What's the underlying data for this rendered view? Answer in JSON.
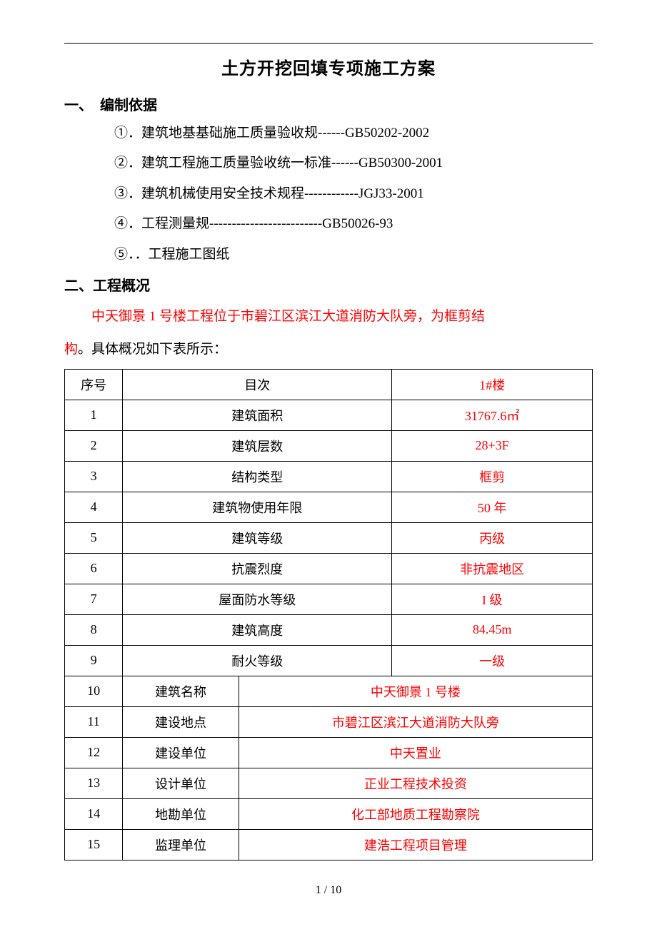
{
  "title": "土方开挖回填专项施工方案",
  "section1": {
    "heading": "一、　编制依据",
    "items": [
      "①．建筑地基基础施工质量验收规------GB50202-2002",
      "②．建筑工程施工质量验收统一标准------GB50300-2001",
      "③．建筑机械使用安全技术规程------------JGJ33-2001",
      "④．工程测量规-------------------------GB50026-93",
      "⑤．．工程施工图纸"
    ]
  },
  "section2": {
    "heading": "二、工程概况",
    "description_red_part_1": "中天御景 1 号楼工程位于市碧江区滨江大道消防大队旁，为框剪结",
    "description_red_part_2": "构",
    "description_black_part": "。具体概况如下表所示："
  },
  "table": {
    "header": {
      "seq": "序号",
      "item": "目次",
      "value": "1#楼"
    },
    "rows_3col": [
      {
        "seq": "1",
        "item": "建筑面积",
        "value": "31767.6㎡"
      },
      {
        "seq": "2",
        "item": "建筑层数",
        "value": "28+3F"
      },
      {
        "seq": "3",
        "item": "结构类型",
        "value": "框剪"
      },
      {
        "seq": "4",
        "item": "建筑物使用年限",
        "value": "50 年"
      },
      {
        "seq": "5",
        "item": "建筑等级",
        "value": "丙级"
      },
      {
        "seq": "6",
        "item": "抗震烈度",
        "value": "非抗震地区"
      },
      {
        "seq": "7",
        "item": "屋面防水等级",
        "value": "I 级"
      },
      {
        "seq": "8",
        "item": "建筑高度",
        "value": "84.45m"
      },
      {
        "seq": "9",
        "item": "耐火等级",
        "value": "一级"
      }
    ],
    "rows_merged": [
      {
        "seq": "10",
        "label": "建筑名称",
        "value": "中天御景 1 号楼"
      },
      {
        "seq": "11",
        "label": "建设地点",
        "value": "市碧江区滨江大道消防大队旁"
      },
      {
        "seq": "12",
        "label": "建设单位",
        "value": "中天置业"
      },
      {
        "seq": "13",
        "label": "设计单位",
        "value": "正业工程技术投资"
      },
      {
        "seq": "14",
        "label": "地勘单位",
        "value": "化工部地质工程勘察院"
      },
      {
        "seq": "15",
        "label": "监理单位",
        "value": "建浩工程项目管理"
      }
    ]
  },
  "footer": "1 / 10",
  "colors": {
    "text": "#000000",
    "accent": "#ff0000",
    "border": "#000000",
    "background": "#ffffff"
  },
  "typography": {
    "title_fontsize": 24,
    "heading_fontsize": 20,
    "body_fontsize": 19,
    "table_fontsize": 18,
    "footer_fontsize": 16,
    "font_family": "SimSun"
  }
}
